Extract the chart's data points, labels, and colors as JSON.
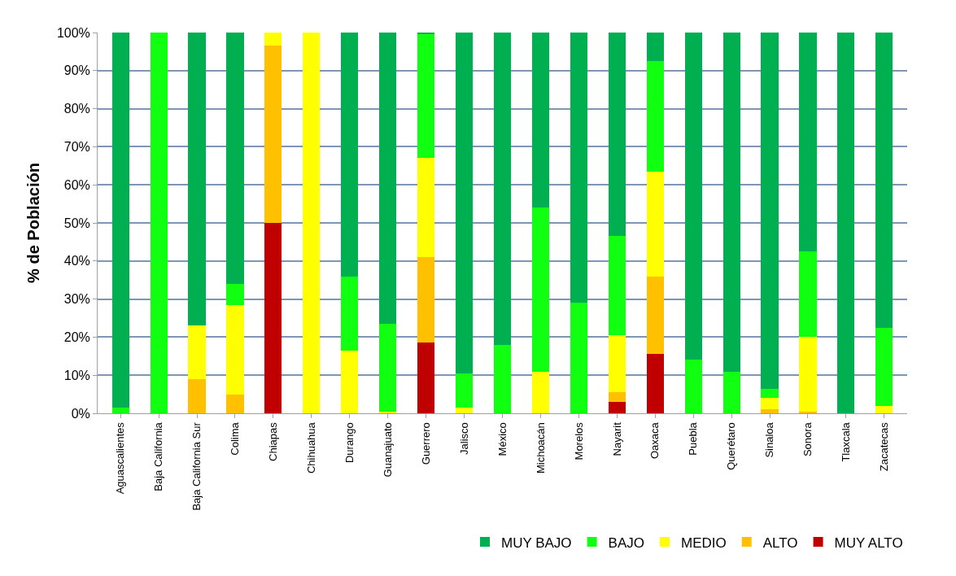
{
  "chart_data": {
    "type": "bar",
    "stacked": true,
    "ylabel": "% de Población",
    "categories": [
      "Aguascalientes",
      "Baja California",
      "Baja California Sur",
      "Colima",
      "Chiapas",
      "Chihuahua",
      "Durango",
      "Guanajuato",
      "Guerrero",
      "Jalisco",
      "México",
      "Michoacán",
      "Morelos",
      "Nayarit",
      "Oaxaca",
      "Puebla",
      "Querétaro",
      "Sinaloa",
      "Sonora",
      "Tlaxcala",
      "Zacatecas"
    ],
    "series": [
      {
        "name": "MUY ALTO",
        "color": "#c00000",
        "values": [
          0,
          0,
          0,
          0,
          50,
          0,
          0,
          0,
          18.5,
          0,
          0,
          0,
          0,
          3,
          15.5,
          0,
          0,
          0,
          0,
          0,
          0
        ]
      },
      {
        "name": "ALTO",
        "color": "#ffc000",
        "values": [
          0,
          0,
          9,
          5,
          46.5,
          0,
          0,
          0,
          22.5,
          0,
          0,
          0,
          0,
          2.5,
          20.5,
          0,
          0,
          1,
          0.5,
          0,
          0
        ]
      },
      {
        "name": "MEDIO",
        "color": "#ffff00",
        "values": [
          0,
          0,
          14,
          23.5,
          3.5,
          100,
          16.5,
          0.5,
          26,
          1.5,
          0,
          11,
          0,
          15,
          27.5,
          0,
          0,
          3,
          19.5,
          0,
          2
        ]
      },
      {
        "name": "BAJO",
        "color": "#11ff11",
        "values": [
          1.5,
          100,
          0,
          5.5,
          0,
          0,
          19.5,
          23,
          32.5,
          9,
          18,
          43,
          29,
          26,
          29,
          14,
          11,
          2.5,
          22.5,
          0,
          20.5
        ]
      },
      {
        "name": "MUY BAJO",
        "color": "#00b050",
        "values": [
          98.5,
          0,
          77,
          66,
          0,
          0,
          64,
          76.5,
          0.5,
          89.5,
          82,
          46,
          71,
          53.5,
          7.5,
          86,
          89,
          93.5,
          57.5,
          100,
          77.5
        ]
      }
    ],
    "ylim": [
      0,
      100
    ],
    "yticks": [
      {
        "value": 0,
        "label": "0%"
      },
      {
        "value": 10,
        "label": "10%"
      },
      {
        "value": 20,
        "label": "20%"
      },
      {
        "value": 30,
        "label": "30%"
      },
      {
        "value": 40,
        "label": "40%"
      },
      {
        "value": 50,
        "label": "50%"
      },
      {
        "value": 60,
        "label": "60%"
      },
      {
        "value": 70,
        "label": "70%"
      },
      {
        "value": 80,
        "label": "80%"
      },
      {
        "value": 90,
        "label": "90%"
      },
      {
        "value": 100,
        "label": "100%"
      }
    ],
    "grid": "y",
    "legend": "bottom right"
  }
}
